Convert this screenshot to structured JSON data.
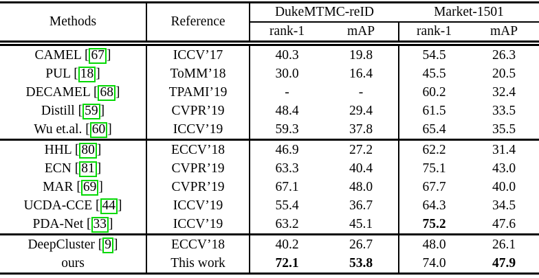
{
  "colors": {
    "citation_box_border": "#00d800",
    "rule": "#000000",
    "background": "#ffffff",
    "text": "#000000"
  },
  "table": {
    "header": {
      "methods": "Methods",
      "reference": "Reference",
      "duke": "DukeMTMC-reID",
      "market": "Market-1501",
      "sub": [
        "rank-1",
        "mAP",
        "rank-1",
        "mAP"
      ]
    },
    "groups": [
      {
        "rows": [
          {
            "method": "CAMEL",
            "cite": "67",
            "reference": "ICCV’17",
            "values": [
              "40.3",
              "19.8",
              "54.5",
              "26.3"
            ],
            "bold": [
              false,
              false,
              false,
              false
            ]
          },
          {
            "method": "PUL",
            "cite": "18",
            "reference": "ToMM’18",
            "values": [
              "30.0",
              "16.4",
              "45.5",
              "20.5"
            ],
            "bold": [
              false,
              false,
              false,
              false
            ]
          },
          {
            "method": "DECAMEL",
            "cite": "68",
            "reference": "TPAMI’19",
            "values": [
              "-",
              "-",
              "60.2",
              "32.4"
            ],
            "bold": [
              false,
              false,
              false,
              false
            ]
          },
          {
            "method": "Distill",
            "cite": "59",
            "reference": "CVPR’19",
            "values": [
              "48.4",
              "29.4",
              "61.5",
              "33.5"
            ],
            "bold": [
              false,
              false,
              false,
              false
            ]
          },
          {
            "method": "Wu et.al.",
            "cite": "60",
            "reference": "ICCV’19",
            "values": [
              "59.3",
              "37.8",
              "65.4",
              "35.5"
            ],
            "bold": [
              false,
              false,
              false,
              false
            ]
          }
        ]
      },
      {
        "rows": [
          {
            "method": "HHL",
            "cite": "80",
            "reference": "ECCV’18",
            "values": [
              "46.9",
              "27.2",
              "62.2",
              "31.4"
            ],
            "bold": [
              false,
              false,
              false,
              false
            ]
          },
          {
            "method": "ECN",
            "cite": "81",
            "reference": "CVPR’19",
            "values": [
              "63.3",
              "40.4",
              "75.1",
              "43.0"
            ],
            "bold": [
              false,
              false,
              false,
              false
            ]
          },
          {
            "method": "MAR",
            "cite": "69",
            "reference": "CVPR’19",
            "values": [
              "67.1",
              "48.0",
              "67.7",
              "40.0"
            ],
            "bold": [
              false,
              false,
              false,
              false
            ]
          },
          {
            "method": "UCDA-CCE",
            "cite": "44",
            "reference": "ICCV’19",
            "values": [
              "55.4",
              "36.7",
              "64.3",
              "34.5"
            ],
            "bold": [
              false,
              false,
              false,
              false
            ]
          },
          {
            "method": "PDA-Net",
            "cite": "33",
            "reference": "ICCV’19",
            "values": [
              "63.2",
              "45.1",
              "75.2",
              "47.6"
            ],
            "bold": [
              false,
              false,
              true,
              false
            ]
          }
        ]
      },
      {
        "rows": [
          {
            "method": "DeepCluster",
            "cite": "9",
            "reference": "ECCV’18",
            "values": [
              "40.2",
              "26.7",
              "48.0",
              "26.1"
            ],
            "bold": [
              false,
              false,
              false,
              false
            ]
          },
          {
            "method": "ours",
            "cite": null,
            "reference": "This work",
            "values": [
              "72.1",
              "53.8",
              "74.0",
              "47.9"
            ],
            "bold": [
              true,
              true,
              false,
              true
            ]
          }
        ]
      }
    ]
  }
}
